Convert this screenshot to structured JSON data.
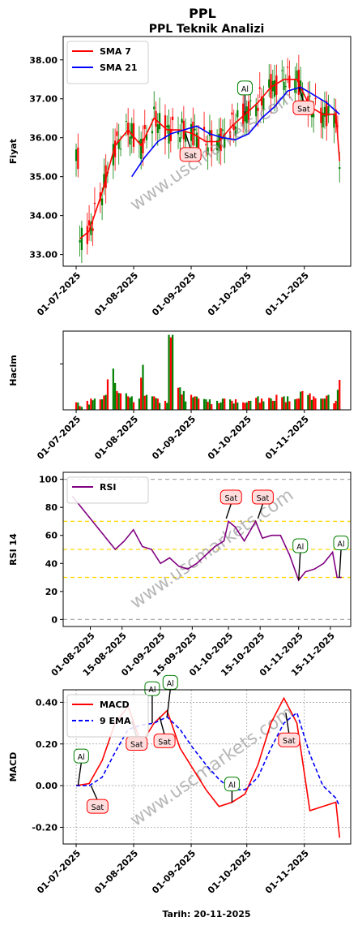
{
  "header": {
    "title": "PPL",
    "subtitle": "PPL Teknik Analizi"
  },
  "footer": {
    "date_label": "Tarih: 20-11-2025"
  },
  "watermark": "www.uscmarkets.com",
  "colors": {
    "sma7": "#ff0000",
    "sma21": "#0000ff",
    "up_candle": "#008000",
    "down_candle": "#ff0000",
    "rsi": "#800080",
    "rsi_band": "#ffd700",
    "macd": "#ff0000",
    "signal": "#0000ff",
    "buy_badge_border": "#008000",
    "sell_badge_border": "#ff0000",
    "sell_badge_fill": "#ffdddd",
    "buy_badge_fill": "#ffffff"
  },
  "chart_data": [
    {
      "type": "line",
      "panel": "price",
      "ylabel": "Fiyat",
      "ylim": [
        32.7,
        38.6
      ],
      "yticks": [
        "33.00",
        "34.00",
        "35.00",
        "36.00",
        "37.00",
        "38.00"
      ],
      "xticks": [
        "01-07-2025",
        "01-08-2025",
        "01-09-2025",
        "01-10-2025",
        "01-11-2025"
      ],
      "legend_position": "top-left",
      "series": [
        {
          "name": "SMA 7",
          "x": [
            "2025-07-03",
            "2025-07-08",
            "2025-07-15",
            "2025-07-22",
            "2025-07-29",
            "2025-08-05",
            "2025-08-12",
            "2025-08-19",
            "2025-08-26",
            "2025-09-02",
            "2025-09-09",
            "2025-09-16",
            "2025-09-23",
            "2025-09-30",
            "2025-10-07",
            "2025-10-14",
            "2025-10-21",
            "2025-10-28",
            "2025-11-04",
            "2025-11-11",
            "2025-11-18",
            "2025-11-20"
          ],
          "values": [
            33.4,
            33.6,
            34.6,
            35.8,
            36.2,
            35.8,
            36.5,
            36.2,
            36.2,
            36.1,
            35.9,
            35.9,
            36.3,
            36.6,
            36.9,
            37.3,
            37.5,
            37.5,
            36.8,
            36.6,
            36.6,
            35.4
          ]
        },
        {
          "name": "SMA 21",
          "x": [
            "2025-07-31",
            "2025-08-07",
            "2025-08-14",
            "2025-08-21",
            "2025-08-28",
            "2025-09-04",
            "2025-09-11",
            "2025-09-18",
            "2025-09-25",
            "2025-10-02",
            "2025-10-09",
            "2025-10-16",
            "2025-10-23",
            "2025-10-30",
            "2025-11-06",
            "2025-11-13",
            "2025-11-20"
          ],
          "values": [
            35.0,
            35.5,
            35.9,
            36.1,
            36.2,
            36.3,
            36.1,
            36.0,
            35.95,
            36.1,
            36.5,
            36.8,
            37.2,
            37.3,
            37.1,
            36.9,
            36.6
          ]
        }
      ],
      "annotations": [
        {
          "kind": "sell",
          "label": "Sat",
          "date": "2025-08-29",
          "price": 36.1
        },
        {
          "kind": "buy",
          "label": "Al",
          "date": "2025-09-30",
          "price": 36.6
        },
        {
          "kind": "sell",
          "label": "Sat",
          "date": "2025-10-29",
          "price": 37.3
        }
      ]
    },
    {
      "type": "bar",
      "panel": "volume",
      "ylabel": "Hacim",
      "xticks": [
        "01-07-2025",
        "01-08-2025",
        "01-09-2025",
        "01-10-2025",
        "01-11-2025"
      ],
      "values_relative": [
        0.1,
        0.05,
        0.12,
        0.15,
        0.14,
        0.2,
        0.55,
        0.25,
        0.22,
        0.18,
        0.15,
        0.6,
        0.2,
        0.18,
        0.15,
        0.12,
        1.0,
        0.3,
        0.25,
        0.2,
        0.18,
        0.15,
        0.14,
        0.12,
        0.1,
        0.15,
        0.12,
        0.14,
        0.1,
        0.12,
        0.18,
        0.15,
        0.16,
        0.12,
        0.2,
        0.18,
        0.14,
        0.15,
        0.25,
        0.22,
        0.18,
        0.15,
        0.2,
        0.12,
        0.4
      ]
    },
    {
      "type": "line",
      "panel": "rsi",
      "ylabel": "RSI 14",
      "ylim": [
        -5,
        105
      ],
      "yticks": [
        "0",
        "20",
        "40",
        "60",
        "80",
        "100"
      ],
      "xticks": [
        "01-08-2025",
        "15-08-2025",
        "01-09-2025",
        "15-09-2025",
        "01-10-2025",
        "15-10-2025",
        "01-11-2025",
        "15-11-2025"
      ],
      "legend_position": "top-left",
      "levels": [
        0,
        30,
        50,
        70,
        100
      ],
      "series": [
        {
          "name": "RSI",
          "x": [
            "2025-07-24",
            "2025-07-27",
            "2025-07-31",
            "2025-08-04",
            "2025-08-08",
            "2025-08-12",
            "2025-08-16",
            "2025-08-20",
            "2025-08-24",
            "2025-08-28",
            "2025-09-01",
            "2025-09-05",
            "2025-09-09",
            "2025-09-13",
            "2025-09-17",
            "2025-09-21",
            "2025-09-25",
            "2025-09-29",
            "2025-10-01",
            "2025-10-04",
            "2025-10-08",
            "2025-10-13",
            "2025-10-16",
            "2025-10-20",
            "2025-10-24",
            "2025-10-28",
            "2025-11-01",
            "2025-11-04",
            "2025-11-08",
            "2025-11-12",
            "2025-11-16",
            "2025-11-18",
            "2025-11-20"
          ],
          "values": [
            88,
            82,
            74,
            66,
            58,
            50,
            56,
            64,
            52,
            50,
            40,
            44,
            38,
            36,
            40,
            46,
            52,
            56,
            70,
            66,
            56,
            70,
            58,
            60,
            60,
            46,
            28,
            34,
            36,
            40,
            48,
            30,
            30
          ]
        }
      ],
      "annotations": [
        {
          "kind": "sell",
          "label": "Sat",
          "date": "2025-09-30",
          "value": 72
        },
        {
          "kind": "sell",
          "label": "Sat",
          "date": "2025-10-14",
          "value": 72
        },
        {
          "kind": "buy",
          "label": "Al",
          "date": "2025-11-01",
          "value": 28
        },
        {
          "kind": "buy",
          "label": "Al",
          "date": "2025-11-19",
          "value": 30
        }
      ]
    },
    {
      "type": "line",
      "panel": "macd",
      "ylabel": "MACD",
      "ylim": [
        -0.28,
        0.46
      ],
      "yticks": [
        "-0.20",
        "0.00",
        "0.20",
        "0.40"
      ],
      "xticks": [
        "01-07-2025",
        "01-08-2025",
        "01-09-2025",
        "01-10-2025",
        "01-11-2025"
      ],
      "legend_position": "top-left",
      "grid": true,
      "series": [
        {
          "name": "MACD",
          "x": [
            "2025-07-01",
            "2025-07-08",
            "2025-07-15",
            "2025-07-22",
            "2025-07-29",
            "2025-08-05",
            "2025-08-12",
            "2025-08-19",
            "2025-08-26",
            "2025-09-02",
            "2025-09-09",
            "2025-09-16",
            "2025-09-23",
            "2025-09-30",
            "2025-10-07",
            "2025-10-14",
            "2025-10-21",
            "2025-10-28",
            "2025-11-04",
            "2025-11-11",
            "2025-11-18",
            "2025-11-20"
          ],
          "values": [
            0.0,
            0.01,
            0.12,
            0.3,
            0.38,
            0.2,
            0.3,
            0.36,
            0.18,
            0.08,
            -0.02,
            -0.1,
            -0.08,
            -0.04,
            0.1,
            0.3,
            0.42,
            0.3,
            -0.12,
            -0.1,
            -0.08,
            -0.25
          ]
        },
        {
          "name": "9 EMA",
          "x": [
            "2025-07-01",
            "2025-07-08",
            "2025-07-15",
            "2025-07-22",
            "2025-07-29",
            "2025-08-05",
            "2025-08-12",
            "2025-08-19",
            "2025-08-26",
            "2025-09-02",
            "2025-09-09",
            "2025-09-16",
            "2025-09-23",
            "2025-09-30",
            "2025-10-07",
            "2025-10-14",
            "2025-10-21",
            "2025-10-28",
            "2025-11-04",
            "2025-11-11",
            "2025-11-18",
            "2025-11-20"
          ],
          "values": [
            0.0,
            0.0,
            0.04,
            0.16,
            0.27,
            0.29,
            0.3,
            0.33,
            0.27,
            0.18,
            0.1,
            0.03,
            -0.02,
            -0.02,
            0.04,
            0.18,
            0.3,
            0.35,
            0.15,
            0.0,
            -0.06,
            -0.1
          ]
        }
      ],
      "annotations": [
        {
          "kind": "buy",
          "label": "Al",
          "date": "2025-07-02",
          "value": 0.0
        },
        {
          "kind": "sell",
          "label": "Sat",
          "date": "2025-07-09",
          "value": 0.0
        },
        {
          "kind": "sell",
          "label": "Sat",
          "date": "2025-07-31",
          "value": 0.31
        },
        {
          "kind": "buy",
          "label": "Al",
          "date": "2025-08-11",
          "value": 0.3
        },
        {
          "kind": "sell",
          "label": "Sat",
          "date": "2025-08-15",
          "value": 0.33
        },
        {
          "kind": "buy",
          "label": "Al",
          "date": "2025-08-19",
          "value": 0.33
        },
        {
          "kind": "buy",
          "label": "Al",
          "date": "2025-09-23",
          "value": -0.08
        },
        {
          "kind": "sell",
          "label": "Sat",
          "date": "2025-10-22",
          "value": 0.35
        }
      ]
    }
  ]
}
